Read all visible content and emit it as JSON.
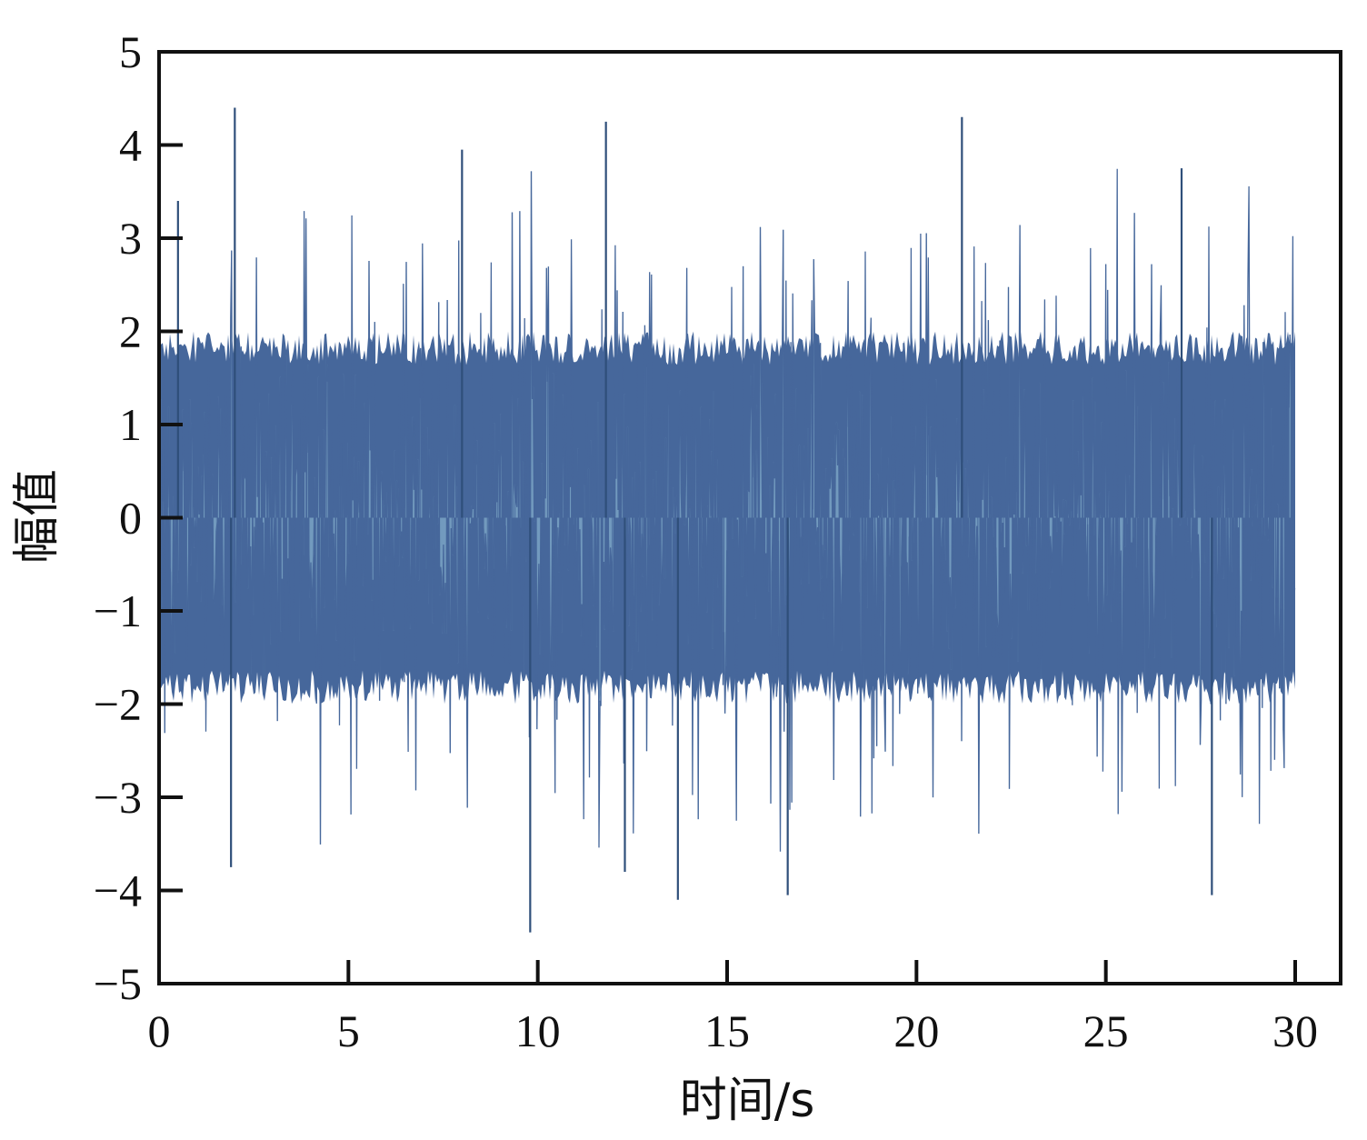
{
  "chart_data": {
    "type": "line",
    "title": "",
    "xlabel": "时间/s",
    "ylabel": "幅值",
    "xlim": [
      0,
      31.2
    ],
    "ylim": [
      -5,
      5
    ],
    "x_ticks": [
      0,
      5,
      10,
      15,
      20,
      25,
      30
    ],
    "x_tick_labels": [
      "0",
      "5",
      "10",
      "15",
      "20",
      "25",
      "30"
    ],
    "y_ticks": [
      -5,
      -4,
      -3,
      -2,
      -1,
      0,
      1,
      2,
      3,
      4,
      5
    ],
    "y_tick_labels": [
      "−5",
      "−4",
      "−3",
      "−2",
      "−1",
      "0",
      "1",
      "2",
      "3",
      "4",
      "5"
    ],
    "grid": false,
    "legend": "none",
    "series": [
      {
        "description": "random vibration signal sampled over 0–30 s",
        "t_start": 0,
        "t_end": 30,
        "mean": 0,
        "typical_envelope": [
          -2,
          2
        ],
        "peak_max": 4.4,
        "peak_max_at": 2.0,
        "peak_min": -4.45,
        "peak_min_at": 9.8,
        "notable_peaks": [
          {
            "x": 2.0,
            "y": 4.4
          },
          {
            "x": 11.8,
            "y": 4.25
          },
          {
            "x": 21.2,
            "y": 4.3
          },
          {
            "x": 0.5,
            "y": 3.4
          },
          {
            "x": 27.0,
            "y": 3.75
          },
          {
            "x": 8.0,
            "y": 3.95
          },
          {
            "x": 9.8,
            "y": -4.45
          },
          {
            "x": 13.7,
            "y": -4.1
          },
          {
            "x": 16.6,
            "y": -4.05
          },
          {
            "x": 27.8,
            "y": -4.05
          },
          {
            "x": 1.9,
            "y": -3.75
          },
          {
            "x": 12.3,
            "y": -3.8
          }
        ]
      }
    ],
    "colors": {
      "fill": "#46679b",
      "light": "#7aa3c4",
      "dark": "#2f4f7a",
      "axis": "#111111"
    }
  }
}
